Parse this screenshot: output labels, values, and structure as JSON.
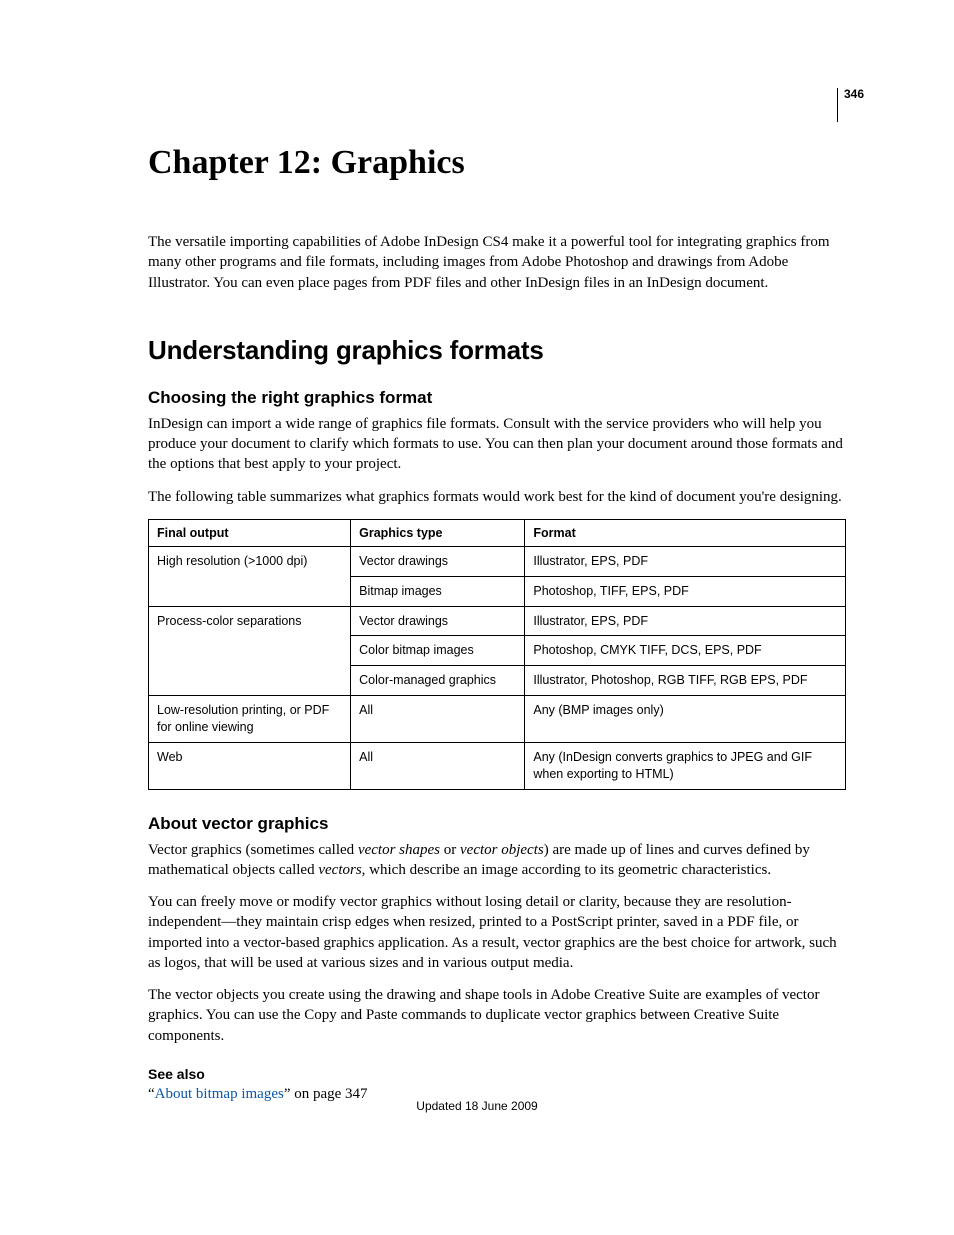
{
  "page_number": "346",
  "chapter_title": "Chapter 12: Graphics",
  "intro": "The versatile importing capabilities of Adobe InDesign CS4 make it a powerful tool for integrating graphics from many other programs and file formats, including images from Adobe Photoshop and drawings from Adobe Illustrator. You can even place pages from PDF files and other InDesign files in an InDesign document.",
  "section_title": "Understanding graphics formats",
  "sub1": {
    "title": "Choosing the right graphics format",
    "p1": "InDesign can import a wide range of graphics file formats. Consult with the service providers who will help you produce your document to clarify which formats to use. You can then plan your document around those formats and the options that best apply to your project.",
    "p2": "The following table summarizes what graphics formats would work best for the kind of document you're designing."
  },
  "table": {
    "headers": {
      "c1": "Final output",
      "c2": "Graphics type",
      "c3": "Format"
    },
    "rows": [
      {
        "c1": "High resolution (>1000 dpi)",
        "c2": "Vector drawings",
        "c3": "Illustrator, EPS, PDF",
        "span_start": true
      },
      {
        "c1": "",
        "c2": "Bitmap images",
        "c3": "Photoshop, TIFF, EPS, PDF",
        "span_cont": true
      },
      {
        "c1": "Process-color separations",
        "c2": "Vector drawings",
        "c3": "Illustrator, EPS, PDF",
        "span_start": true
      },
      {
        "c1": "",
        "c2": "Color bitmap images",
        "c3": "Photoshop, CMYK TIFF, DCS, EPS, PDF",
        "span_mid": true
      },
      {
        "c1": "",
        "c2": "Color-managed graphics",
        "c3": "Illustrator, Photoshop, RGB TIFF, RGB EPS, PDF",
        "span_cont": true
      },
      {
        "c1": "Low-resolution printing, or PDF for online viewing",
        "c2": "All",
        "c3": "Any (BMP images only)"
      },
      {
        "c1": "Web",
        "c2": "All",
        "c3": "Any (InDesign converts graphics to JPEG and GIF when exporting to HTML)"
      }
    ]
  },
  "sub2": {
    "title": "About vector graphics",
    "p1_a": "Vector graphics (sometimes called ",
    "p1_i1": "vector shapes",
    "p1_b": " or ",
    "p1_i2": "vector objects",
    "p1_c": ") are made up of lines and curves defined by mathematical objects called ",
    "p1_i3": "vectors",
    "p1_d": ", which describe an image according to its geometric characteristics.",
    "p2": "You can freely move or modify vector graphics without losing detail or clarity, because they are resolution-independent—they maintain crisp edges when resized, printed to a PostScript printer, saved in a PDF file, or imported into a vector-based graphics application. As a result, vector graphics are the best choice for artwork, such as logos, that will be used at various sizes and in various output media.",
    "p3": "The vector objects you create using the drawing and shape tools in Adobe Creative Suite are examples of vector graphics. You can use the Copy and Paste commands to duplicate vector graphics between Creative Suite components."
  },
  "seealso": {
    "heading": "See also",
    "quote_open": "“",
    "link_text": "About bitmap images",
    "tail": "” on page 347"
  },
  "footer": "Updated 18 June 2009"
}
